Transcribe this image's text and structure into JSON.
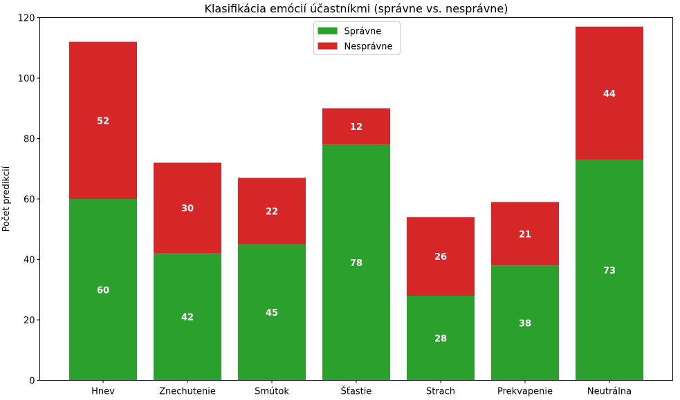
{
  "chart_data": {
    "type": "bar",
    "stacked": true,
    "title": "Klasifikácia emócií účastníkmi (správne vs. nesprávne)",
    "xlabel": "",
    "ylabel": "Počet predikcií",
    "ylim": [
      0,
      120
    ],
    "yticks": [
      0,
      20,
      40,
      60,
      80,
      100,
      120
    ],
    "categories": [
      "Hnev",
      "Znechutenie",
      "Smútok",
      "Šťastie",
      "Strach",
      "Prekvapenie",
      "Neutrálna"
    ],
    "series": [
      {
        "name": "Správne",
        "color": "#2ca02c",
        "values": [
          60,
          42,
          45,
          78,
          28,
          38,
          73
        ]
      },
      {
        "name": "Nesprávne",
        "color": "#d62728",
        "values": [
          52,
          30,
          22,
          12,
          26,
          21,
          44
        ]
      }
    ],
    "legend_position": "top-center",
    "grid": false,
    "data_labels": true
  }
}
